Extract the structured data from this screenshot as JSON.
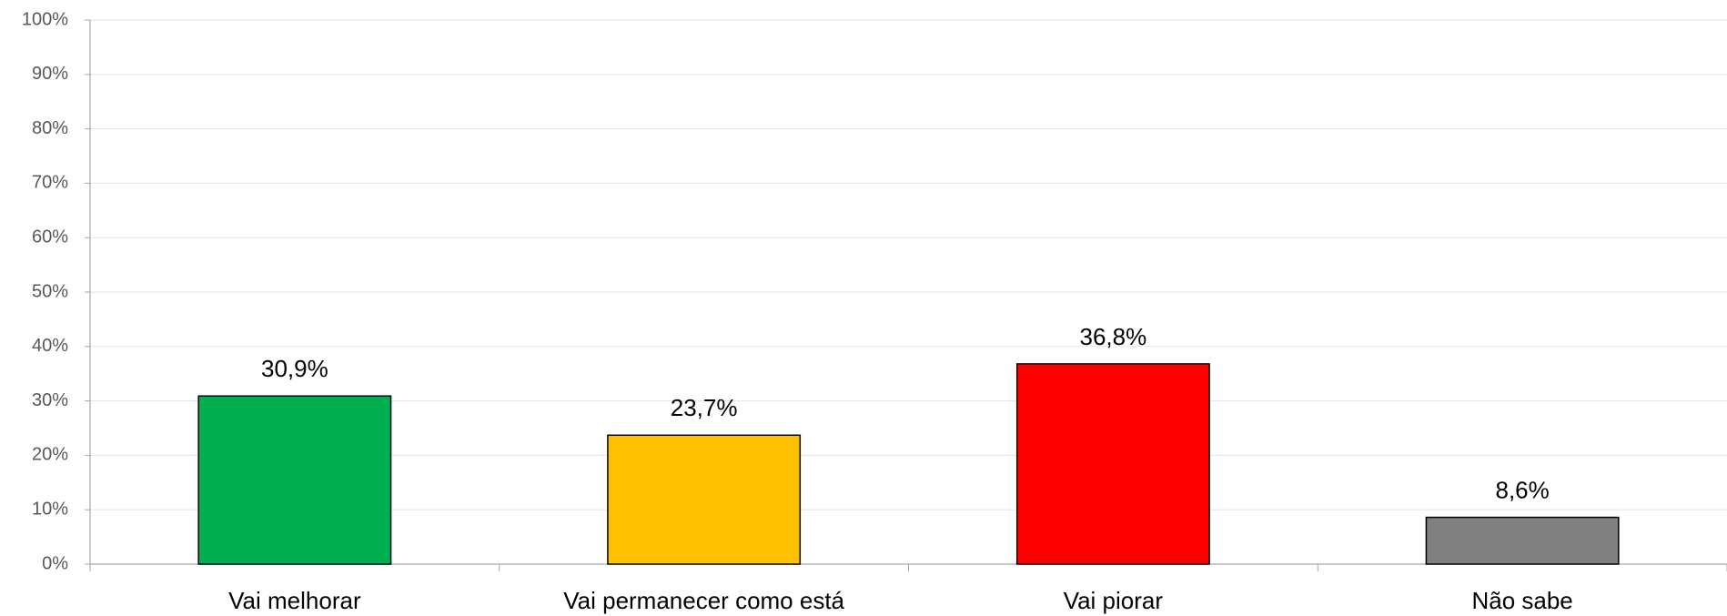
{
  "chart_data": {
    "type": "bar",
    "categories": [
      "Vai melhorar",
      "Vai permanecer como está",
      "Vai piorar",
      "Não sabe"
    ],
    "values": [
      30.9,
      23.7,
      36.8,
      8.6
    ],
    "value_labels": [
      "30,9%",
      "23,7%",
      "36,8%",
      "8,6%"
    ],
    "colors": [
      "#00b050",
      "#ffc000",
      "#ff0000",
      "#808080"
    ],
    "ylim": [
      0,
      100
    ],
    "yticks": [
      {
        "value": 0,
        "label": "0%"
      },
      {
        "value": 10,
        "label": "10%"
      },
      {
        "value": 20,
        "label": "20%"
      },
      {
        "value": 30,
        "label": "30%"
      },
      {
        "value": 40,
        "label": "40%"
      },
      {
        "value": 50,
        "label": "50%"
      },
      {
        "value": 60,
        "label": "60%"
      },
      {
        "value": 70,
        "label": "70%"
      },
      {
        "value": 80,
        "label": "80%"
      },
      {
        "value": 90,
        "label": "90%"
      },
      {
        "value": 100,
        "label": "100%"
      }
    ],
    "grid": true
  }
}
